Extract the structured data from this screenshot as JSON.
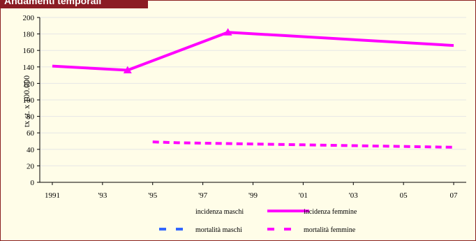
{
  "panel": {
    "title": "Andamenti temporali"
  },
  "chart_data": {
    "type": "line",
    "ylabel": "tx st. x 100.000",
    "xlabel": "",
    "ylim": [
      0,
      200
    ],
    "yticks": [
      0,
      20,
      40,
      60,
      80,
      100,
      120,
      140,
      160,
      180,
      200
    ],
    "xlim": [
      1990.5,
      2007.5
    ],
    "xticks": [
      {
        "value": 1991,
        "label": "1991"
      },
      {
        "value": 1993,
        "label": "'93"
      },
      {
        "value": 1995,
        "label": "'95"
      },
      {
        "value": 1997,
        "label": "'97"
      },
      {
        "value": 1999,
        "label": "'99"
      },
      {
        "value": 2001,
        "label": "'01"
      },
      {
        "value": 2003,
        "label": "'03"
      },
      {
        "value": 2005,
        "label": "05"
      },
      {
        "value": 2007,
        "label": "07"
      }
    ],
    "grid": true,
    "legend_position": "bottom",
    "series": [
      {
        "name": "incidenza maschi",
        "style": "none",
        "color": "#000000",
        "x": [],
        "y": []
      },
      {
        "name": "incidenza femmine",
        "style": "solid",
        "color": "#ff00ff",
        "markers": "triangle",
        "marker_points": [
          1994,
          1998
        ],
        "x": [
          1991,
          1994,
          1998,
          2007
        ],
        "y": [
          141,
          136,
          182,
          166
        ]
      },
      {
        "name": "mortalità maschi",
        "style": "dashed",
        "color": "#3366ff",
        "x": [],
        "y": []
      },
      {
        "name": "mortalità femmine",
        "style": "dashed",
        "color": "#ff00ff",
        "x": [
          1995,
          1996,
          1997,
          1998,
          1999,
          2000,
          2001,
          2002,
          2003,
          2004,
          2005,
          2006,
          2007
        ],
        "y": [
          49,
          48,
          47.5,
          47,
          46.5,
          46,
          45.5,
          45,
          44.5,
          44,
          43.5,
          43,
          42.5
        ]
      }
    ]
  }
}
